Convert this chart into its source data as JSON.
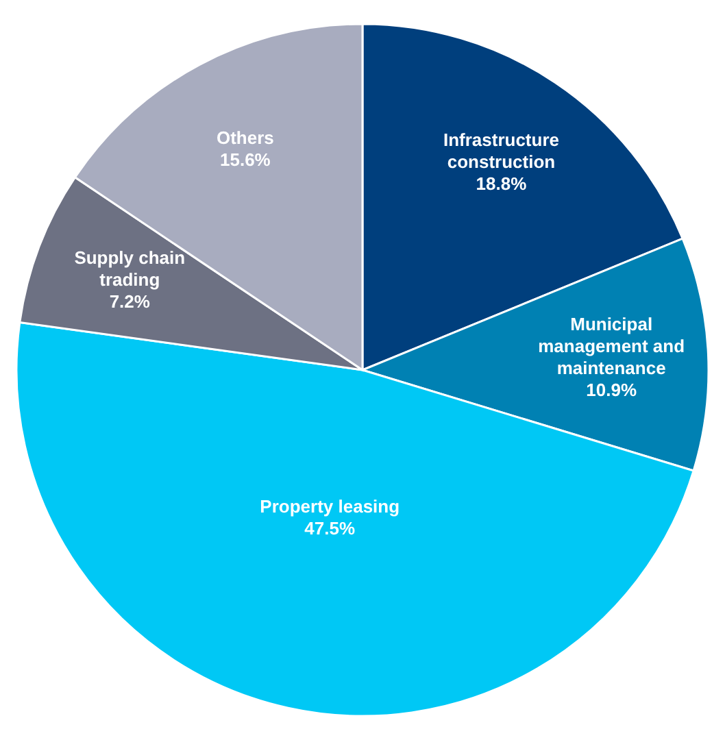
{
  "chart_data": {
    "type": "pie",
    "categories": [
      "Infrastructure construction",
      "Municipal management and maintenance",
      "Property leasing",
      "Supply chain trading",
      "Others"
    ],
    "values": [
      18.8,
      10.9,
      47.5,
      7.2,
      15.6
    ],
    "value_labels": [
      "18.8%",
      "10.9%",
      "47.5%",
      "7.2%",
      "15.6%"
    ],
    "colors": [
      "#003f7d",
      "#0081b3",
      "#00c8f5",
      "#6d7183",
      "#a8acbf"
    ]
  }
}
